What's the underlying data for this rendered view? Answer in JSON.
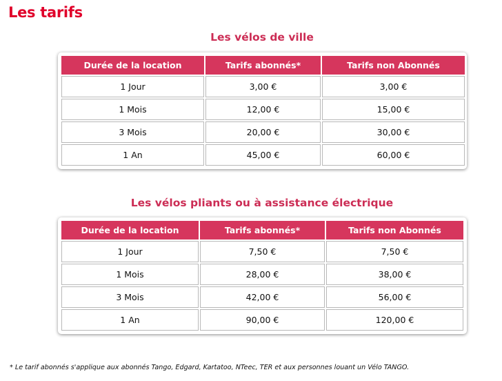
{
  "page_title": "Les tarifs",
  "colors": {
    "title": "#e0002a",
    "section_title": "#cc2d55",
    "header_bg": "#d6365d",
    "header_text": "#ffffff"
  },
  "sections": [
    {
      "title": "Les vélos de ville",
      "headers": [
        "Durée de la location",
        "Tarifs abonnés*",
        "Tarifs non Abonnés"
      ],
      "rows": [
        [
          "1 Jour",
          "3,00 €",
          "3,00 €"
        ],
        [
          "1 Mois",
          "12,00 €",
          "15,00 €"
        ],
        [
          "3 Mois",
          "20,00 €",
          "30,00 €"
        ],
        [
          "1 An",
          "45,00 €",
          "60,00 €"
        ]
      ]
    },
    {
      "title": "Les vélos pliants ou à assistance électrique",
      "headers": [
        "Durée de la location",
        "Tarifs abonnés*",
        "Tarifs non Abonnés"
      ],
      "rows": [
        [
          "1 Jour",
          "7,50 €",
          "7,50 €"
        ],
        [
          "1 Mois",
          "28,00 €",
          "38,00 €"
        ],
        [
          "3 Mois",
          "42,00 €",
          "56,00 €"
        ],
        [
          "1 An",
          "90,00 €",
          "120,00 €"
        ]
      ]
    }
  ],
  "footnote": "* Le tarif abonnés s'applique aux abonnés Tango, Edgard, Kartatoo, NTeec, TER et aux personnes louant un Vélo TANGO."
}
